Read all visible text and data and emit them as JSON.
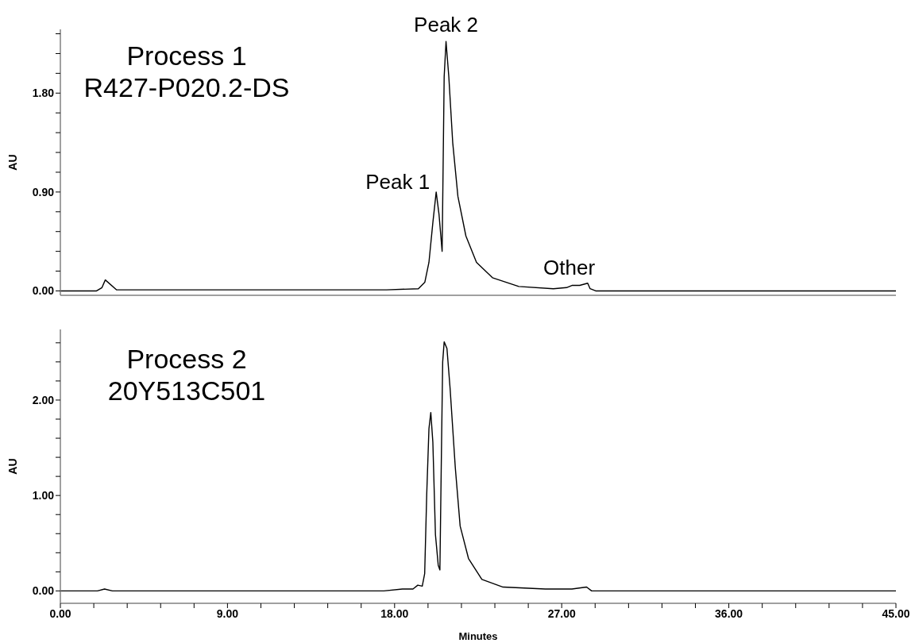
{
  "chart_data": [
    {
      "type": "line",
      "ylabel": "AU",
      "xlim": [
        0,
        45
      ],
      "ylim": [
        -0.04,
        2.38
      ],
      "tick_labels": "y",
      "yticks": [
        {
          "value": 0,
          "label": "0.00"
        },
        {
          "value": 0.18,
          "label": null
        },
        {
          "value": 0.36,
          "label": null
        },
        {
          "value": 0.54,
          "label": null
        },
        {
          "value": 0.72,
          "label": null
        },
        {
          "value": 0.9,
          "label": "0.90"
        },
        {
          "value": 1.08,
          "label": null
        },
        {
          "value": 1.26,
          "label": null
        },
        {
          "value": 1.44,
          "label": null
        },
        {
          "value": 1.62,
          "label": null
        },
        {
          "value": 1.8,
          "label": "1.80"
        },
        {
          "value": 1.98,
          "label": null
        },
        {
          "value": 2.16,
          "label": null
        },
        {
          "value": 2.34,
          "label": null
        }
      ],
      "annotations": [
        "Process 1",
        "R427-P020.2-DS",
        {
          "text": "Peak 1",
          "x": 20.24,
          "y": 0.9
        },
        {
          "text": "Peak 2",
          "x": 20.77,
          "y": 2.27
        },
        {
          "text": "Other",
          "x": 28.0,
          "y": 0.05
        }
      ],
      "series": [
        {
          "color": "#000000",
          "x": [
            0,
            1.95,
            2.24,
            2.42,
            3.02,
            17.57,
            19.28,
            19.63,
            19.85,
            20.06,
            20.24,
            20.39,
            20.56,
            20.6,
            20.67,
            20.77,
            20.92,
            21.13,
            21.41,
            21.84,
            22.41,
            23.27,
            24.69,
            26.55,
            27.26,
            27.55,
            27.97,
            28.4,
            28.53,
            28.83,
            45
          ],
          "values": [
            0,
            0,
            0.03,
            0.1,
            0.01,
            0.01,
            0.02,
            0.08,
            0.26,
            0.62,
            0.9,
            0.7,
            0.36,
            0.94,
            1.95,
            2.27,
            1.95,
            1.35,
            0.86,
            0.5,
            0.26,
            0.12,
            0.04,
            0.02,
            0.03,
            0.05,
            0.05,
            0.07,
            0.02,
            0,
            0
          ]
        }
      ]
    },
    {
      "type": "line",
      "xlabel": "Minutes",
      "ylabel": "AU",
      "xlim": [
        0,
        45
      ],
      "ylim": [
        -0.13,
        2.74
      ],
      "xticks": [
        {
          "value": 0,
          "label": "0.00"
        },
        {
          "value": 1.8,
          "label": null
        },
        {
          "value": 3.6,
          "label": null
        },
        {
          "value": 5.4,
          "label": null
        },
        {
          "value": 7.2,
          "label": null
        },
        {
          "value": 9,
          "label": "9.00"
        },
        {
          "value": 10.8,
          "label": null
        },
        {
          "value": 12.6,
          "label": null
        },
        {
          "value": 14.4,
          "label": null
        },
        {
          "value": 16.2,
          "label": null
        },
        {
          "value": 18,
          "label": "18.00"
        },
        {
          "value": 19.8,
          "label": null
        },
        {
          "value": 21.6,
          "label": null
        },
        {
          "value": 23.4,
          "label": null
        },
        {
          "value": 25.2,
          "label": null
        },
        {
          "value": 27,
          "label": "27.00"
        },
        {
          "value": 28.8,
          "label": null
        },
        {
          "value": 30.6,
          "label": null
        },
        {
          "value": 32.4,
          "label": null
        },
        {
          "value": 34.2,
          "label": null
        },
        {
          "value": 36,
          "label": "36.00"
        },
        {
          "value": 37.8,
          "label": null
        },
        {
          "value": 39.6,
          "label": null
        },
        {
          "value": 41.4,
          "label": null
        },
        {
          "value": 43.2,
          "label": null
        },
        {
          "value": 45,
          "label": "45.00"
        }
      ],
      "yticks": [
        {
          "value": 0,
          "label": "0.00"
        },
        {
          "value": 0.2,
          "label": null
        },
        {
          "value": 0.4,
          "label": null
        },
        {
          "value": 0.6,
          "label": null
        },
        {
          "value": 0.8,
          "label": null
        },
        {
          "value": 1,
          "label": "1.00"
        },
        {
          "value": 1.2,
          "label": null
        },
        {
          "value": 1.4,
          "label": null
        },
        {
          "value": 1.6,
          "label": null
        },
        {
          "value": 1.8,
          "label": null
        },
        {
          "value": 2,
          "label": "2.00"
        },
        {
          "value": 2.2,
          "label": null
        },
        {
          "value": 2.4,
          "label": null
        },
        {
          "value": 2.6,
          "label": null
        }
      ],
      "annotations": [
        "Process 2",
        "20Y513C501"
      ],
      "series": [
        {
          "color": "#000000",
          "x": [
            0,
            2.0,
            2.38,
            2.8,
            17.42,
            18.42,
            18.99,
            19.25,
            19.49,
            19.62,
            19.73,
            19.85,
            19.95,
            20.06,
            20.2,
            20.35,
            20.44,
            20.53,
            20.59,
            20.67,
            20.82,
            20.99,
            21.27,
            21.53,
            21.98,
            22.7,
            23.84,
            26.12,
            27.55,
            28.34,
            28.61,
            45
          ],
          "values": [
            0,
            0,
            0.02,
            0,
            0,
            0.02,
            0.02,
            0.06,
            0.05,
            0.18,
            1.01,
            1.7,
            1.87,
            1.56,
            0.59,
            0.27,
            0.22,
            1.56,
            2.4,
            2.61,
            2.54,
            2.12,
            1.29,
            0.68,
            0.34,
            0.12,
            0.04,
            0.02,
            0.02,
            0.04,
            0,
            0
          ]
        }
      ]
    }
  ]
}
